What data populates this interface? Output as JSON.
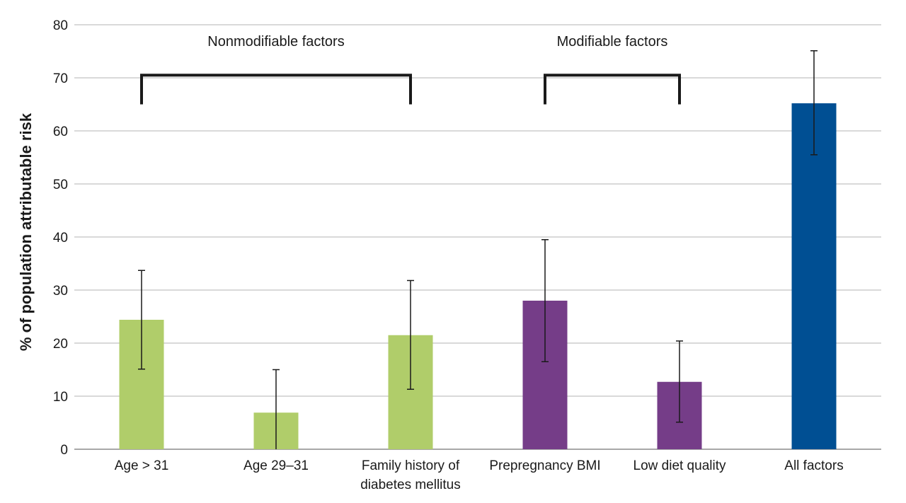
{
  "chart_data": {
    "type": "bar",
    "ylabel": "% of population attributable risk",
    "ylim": [
      0,
      80
    ],
    "yticks": [
      "0",
      "10",
      "20",
      "30",
      "40",
      "50",
      "60",
      "70",
      "80"
    ],
    "grid": true,
    "categories": [
      {
        "lines": [
          "Age > 31"
        ]
      },
      {
        "lines": [
          "Age 29–31"
        ]
      },
      {
        "lines": [
          "Family history of",
          "diabetes mellitus"
        ]
      },
      {
        "lines": [
          "Prepregnancy BMI"
        ]
      },
      {
        "lines": [
          "Low diet quality"
        ]
      },
      {
        "lines": [
          "All factors"
        ]
      }
    ],
    "values": [
      24.4,
      6.9,
      21.5,
      28.0,
      12.7,
      65.2
    ],
    "error_low": [
      15.1,
      0.0,
      11.3,
      16.5,
      5.1,
      55.5
    ],
    "error_high": [
      33.7,
      15.0,
      31.8,
      39.5,
      20.4,
      75.1
    ],
    "bar_colors": [
      "#b0cd6a",
      "#b0cd6a",
      "#b0cd6a",
      "#753d88",
      "#753d88",
      "#004f93"
    ],
    "groups": [
      {
        "label": "Nonmodifiable factors",
        "from": 0,
        "to": 2
      },
      {
        "label": "Modifiable factors",
        "from": 3,
        "to": 4
      }
    ],
    "colors": {
      "grid": "#b3b3b3",
      "axis": "#8c8c8c",
      "text": "#1a1a1a",
      "bracket": "#1a1a1a"
    }
  }
}
